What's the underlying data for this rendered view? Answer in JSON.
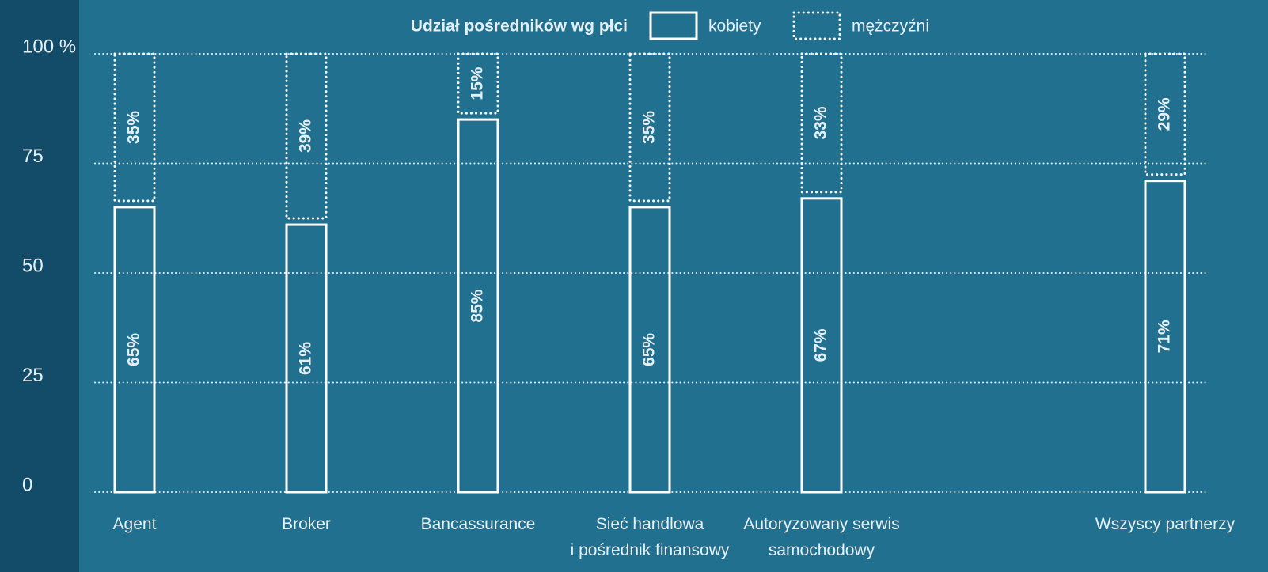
{
  "chart_data": {
    "type": "stacked-bar",
    "legend_title": "Udział pośredników wg płci",
    "categories": [
      "Agent",
      "Broker",
      "Bancassurance",
      "Sieć handlowa\ni pośrednik finansowy",
      "Autoryzowany serwis\nsamochodowy",
      null,
      "Wszyscy partnerzy"
    ],
    "series": [
      {
        "name": "kobiety",
        "style": "solid",
        "color": "#ffffff",
        "values": [
          65,
          61,
          85,
          65,
          67,
          null,
          71
        ],
        "value_labels": [
          "65%",
          "61%",
          "85%",
          "65%",
          "67%",
          null,
          "71%"
        ]
      },
      {
        "name": "mężczyźni",
        "style": "dotted",
        "color": "#ffffff",
        "values": [
          35,
          39,
          15,
          35,
          33,
          null,
          29
        ],
        "value_labels": [
          "35%",
          "39%",
          "15%",
          "35%",
          "33%",
          null,
          "29%"
        ]
      }
    ],
    "ylim": [
      0,
      100
    ],
    "yticks": [
      0,
      25,
      50,
      75,
      {
        "value": 100,
        "label": "100 %"
      }
    ],
    "grid": true
  }
}
